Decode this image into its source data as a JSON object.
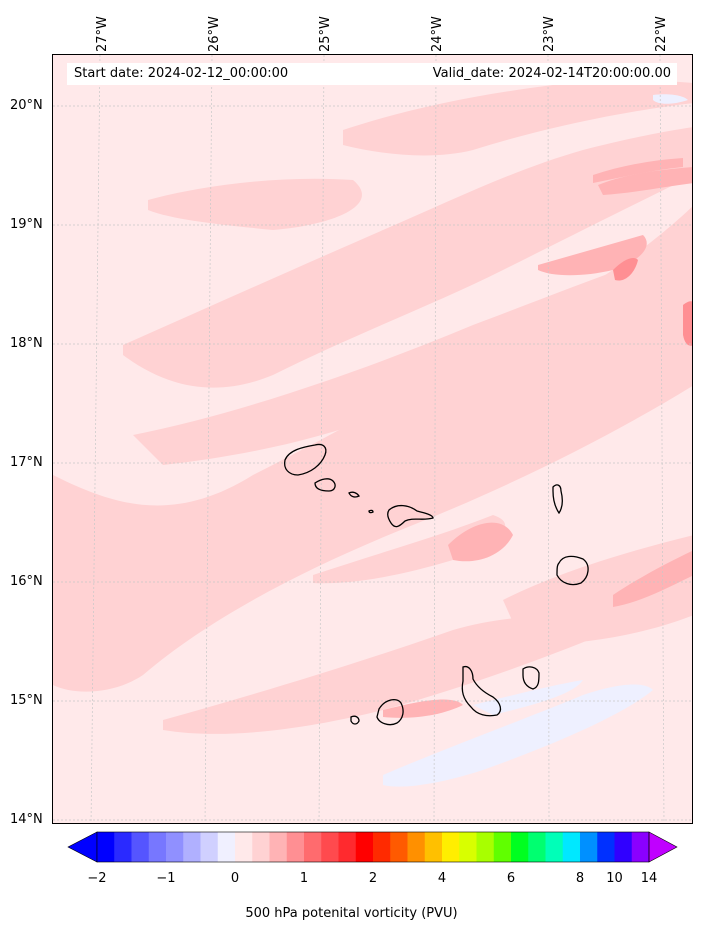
{
  "map": {
    "top_left_text": "Start date: 2024-02-12_00:00:00",
    "top_right_text": "Valid_date: 2024-02-14T20:00:00.00",
    "longitude_labels": [
      "27°W",
      "26°W",
      "25°W",
      "24°W",
      "23°W",
      "22°W"
    ],
    "latitude_labels": [
      "20°N",
      "19°N",
      "18°N",
      "17°N",
      "16°N",
      "15°N",
      "14°N"
    ],
    "field_colors": {
      "background": "#ffe9ea",
      "light_pink": "#ffd2d3",
      "mid_pink": "#ffb3b5",
      "strong_pink": "#ff8f93",
      "pale_blue": "#eef0ff"
    },
    "islands": [
      "Santo Antão",
      "São Vicente",
      "Santa Luzia",
      "São Nicolau",
      "Sal",
      "Boa Vista",
      "Maio",
      "Santiago",
      "Fogo",
      "Brava"
    ]
  },
  "colorbar": {
    "label": "500 hPa potenital vorticity (PVU)",
    "tick_labels": [
      "−2",
      "−1",
      "0",
      "1",
      "2",
      "4",
      "6",
      "8",
      "10",
      "14"
    ],
    "colors": [
      "#0000ff",
      "#2a2aff",
      "#5555ff",
      "#7777ff",
      "#9090ff",
      "#b0b0ff",
      "#d0d0ff",
      "#f0f0ff",
      "#ffe9ea",
      "#ffd2d3",
      "#ffb3b5",
      "#ff8f93",
      "#ff6b6e",
      "#ff4a4e",
      "#ff2a2e",
      "#ff0000",
      "#ff2a00",
      "#ff5a00",
      "#ff9000",
      "#ffc000",
      "#ffee00",
      "#d8ff00",
      "#a8ff00",
      "#60ff00",
      "#00ff20",
      "#00ff70",
      "#00ffb8",
      "#00e8ff",
      "#0090ff",
      "#0030ff",
      "#3000ff",
      "#8a00ff"
    ],
    "under_color": "#0000ff",
    "over_color": "#c000ff"
  }
}
